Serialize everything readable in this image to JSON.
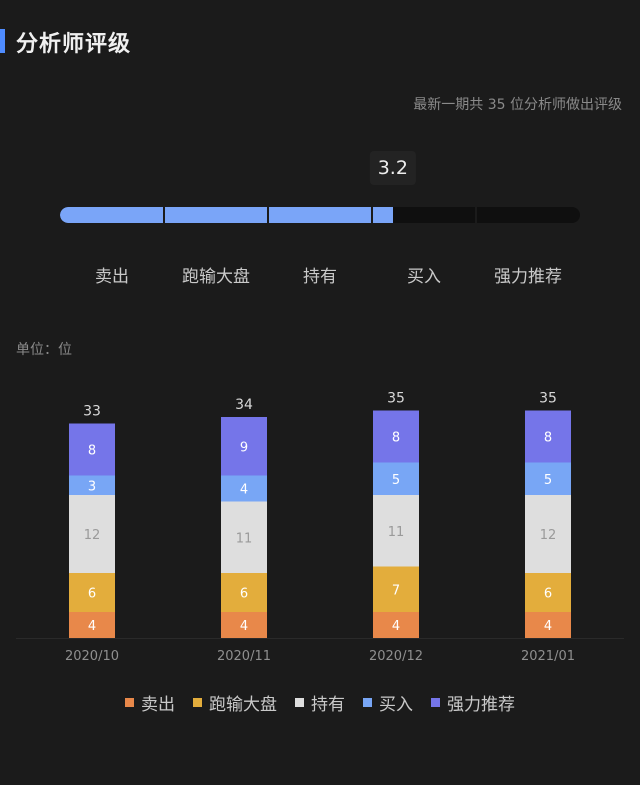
{
  "header": {
    "title": "分析师评级"
  },
  "rating": {
    "note": "最新一期共 35 位分析师做出评级",
    "score": "3.2",
    "score_fraction": 0.64,
    "labels": [
      "卖出",
      "跑输大盘",
      "持有",
      "买入",
      "强力推荐"
    ]
  },
  "unit_label": "单位：位",
  "chart_data": {
    "type": "bar",
    "stacked": true,
    "categories": [
      "2020/10",
      "2020/11",
      "2020/12",
      "2021/01"
    ],
    "totals": [
      33,
      34,
      35,
      35
    ],
    "series": [
      {
        "name": "卖出",
        "color": "#e8884a",
        "values": [
          4,
          4,
          4,
          4
        ]
      },
      {
        "name": "跑输大盘",
        "color": "#e3ad3c",
        "values": [
          6,
          6,
          7,
          6
        ]
      },
      {
        "name": "持有",
        "color": "#dedede",
        "values": [
          12,
          11,
          11,
          12
        ]
      },
      {
        "name": "买入",
        "color": "#78a6f5",
        "values": [
          3,
          4,
          5,
          5
        ]
      },
      {
        "name": "强力推荐",
        "color": "#7575e9",
        "values": [
          8,
          9,
          8,
          8
        ]
      }
    ],
    "ylim": [
      0,
      35
    ]
  }
}
